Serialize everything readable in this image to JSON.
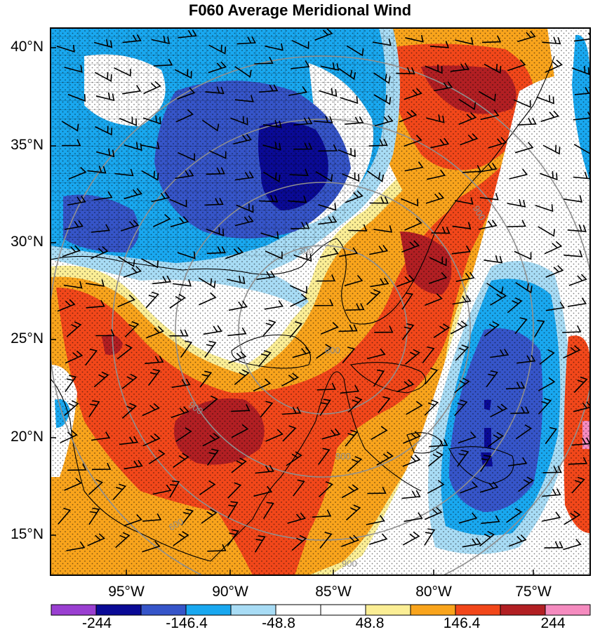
{
  "title": "F060 Average Meridional Wind",
  "lat_labels": [
    "40°N",
    "35°N",
    "30°N",
    "25°N",
    "20°N",
    "15°N"
  ],
  "lon_labels": [
    "95°W",
    "90°W",
    "85°W",
    "80°W",
    "75°W"
  ],
  "colorbar": {
    "labels": [
      "-244",
      "-146.4",
      "-48.8",
      "48.8",
      "146.4",
      "244"
    ],
    "colors": [
      "#9a3fd1",
      "#0a0a96",
      "#3655c9",
      "#19a8f0",
      "#a8dcf5",
      "#ffffff",
      "#ffffff",
      "#fbee95",
      "#f9a41c",
      "#f2471a",
      "#b21f23",
      "#f58bbf"
    ]
  },
  "contour_labels": [
    "900",
    "900",
    "900",
    "900",
    "600",
    "300",
    "600"
  ],
  "palette": {
    "dark_blue": "#0a0a96",
    "blue": "#3655c9",
    "sky_blue": "#19a8f0",
    "light_blue": "#a8dcf5",
    "white": "#ffffff",
    "yellow": "#fbee95",
    "orange": "#f9a41c",
    "red_orange": "#f2471a",
    "dark_red": "#b21f23"
  }
}
